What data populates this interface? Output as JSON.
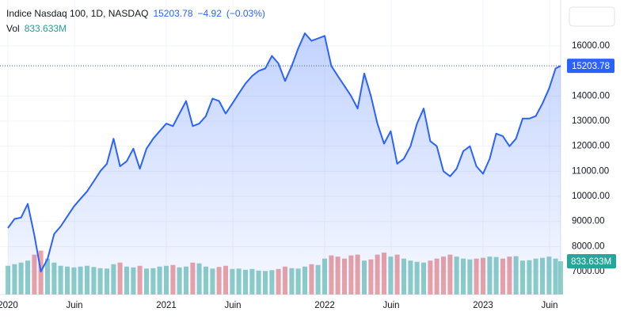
{
  "chart_data": {
    "type": "area",
    "title": "Indice Nasdaq 100, 1D, NASDAQ",
    "last_price": 15203.78,
    "change": {
      "value": -4.92,
      "label": "−4.92"
    },
    "change_pct": {
      "value": -0.03,
      "label": "(−0.03%)"
    },
    "color": "#2962ff",
    "x": [
      2020.0,
      2020.042,
      2020.083,
      2020.125,
      2020.167,
      2020.208,
      2020.25,
      2020.292,
      2020.333,
      2020.375,
      2020.417,
      2020.458,
      2020.5,
      2020.542,
      2020.583,
      2020.625,
      2020.667,
      2020.708,
      2020.75,
      2020.792,
      2020.833,
      2020.875,
      2020.917,
      2020.958,
      2021.0,
      2021.042,
      2021.083,
      2021.125,
      2021.167,
      2021.208,
      2021.25,
      2021.292,
      2021.333,
      2021.375,
      2021.417,
      2021.458,
      2021.5,
      2021.542,
      2021.583,
      2021.625,
      2021.667,
      2021.708,
      2021.75,
      2021.792,
      2021.833,
      2021.875,
      2021.917,
      2021.958,
      2022.0,
      2022.042,
      2022.083,
      2022.125,
      2022.167,
      2022.208,
      2022.25,
      2022.292,
      2022.333,
      2022.375,
      2022.417,
      2022.458,
      2022.5,
      2022.542,
      2022.583,
      2022.625,
      2022.667,
      2022.708,
      2022.75,
      2022.792,
      2022.833,
      2022.875,
      2022.917,
      2022.958,
      2023.0,
      2023.042,
      2023.083,
      2023.125,
      2023.167,
      2023.208,
      2023.25,
      2023.292,
      2023.333,
      2023.375,
      2023.417,
      2023.458,
      2023.49
    ],
    "values": [
      8733,
      9100,
      9150,
      9700,
      8450,
      7000,
      7500,
      8500,
      8800,
      9200,
      9600,
      9900,
      10200,
      10600,
      11000,
      11300,
      12300,
      11200,
      11400,
      11900,
      11100,
      11900,
      12300,
      12600,
      12900,
      12800,
      13300,
      13800,
      12800,
      12900,
      13200,
      13900,
      13800,
      13300,
      13700,
      14100,
      14500,
      14800,
      15000,
      15100,
      15600,
      15300,
      14600,
      15200,
      15900,
      16500,
      16200,
      16300,
      16400,
      15200,
      14800,
      14400,
      14000,
      13500,
      14900,
      14000,
      12900,
      12100,
      12600,
      11300,
      11500,
      12000,
      12900,
      13500,
      12200,
      12000,
      11000,
      10800,
      11100,
      11800,
      12000,
      11200,
      10900,
      11500,
      12500,
      12400,
      12000,
      12300,
      13100,
      13100,
      13200,
      13700,
      14300,
      15100,
      15203.78
    ],
    "volume": {
      "name": "Vol",
      "up_color": "#8fcfc6",
      "down_color": "#efa3a3",
      "values": [
        720,
        760,
        800,
        850,
        1000,
        1100,
        900,
        800,
        720,
        700,
        680,
        700,
        720,
        690,
        660,
        650,
        760,
        800,
        700,
        680,
        720,
        650,
        660,
        700,
        720,
        740,
        680,
        700,
        800,
        780,
        700,
        650,
        690,
        720,
        640,
        650,
        620,
        640,
        600,
        590,
        610,
        640,
        700,
        660,
        650,
        700,
        760,
        740,
        900,
        980,
        950,
        900,
        980,
        1000,
        850,
        880,
        1000,
        1050,
        950,
        1000,
        900,
        850,
        820,
        800,
        850,
        900,
        950,
        1000,
        950,
        900,
        880,
        900,
        920,
        950,
        940,
        900,
        950,
        960,
        850,
        860,
        900,
        920,
        950,
        900,
        833.633
      ],
      "last": {
        "value": 833.633,
        "label": "833.633M"
      }
    },
    "xlim": [
      2019.95,
      2023.49
    ],
    "xticks": [
      {
        "value": 2020,
        "label": "2020"
      },
      {
        "value": 2020.42,
        "label": "Juin"
      },
      {
        "value": 2021,
        "label": "2021"
      },
      {
        "value": 2021.42,
        "label": "Juin"
      },
      {
        "value": 2022,
        "label": "2022"
      },
      {
        "value": 2022.42,
        "label": "Juin"
      },
      {
        "value": 2023,
        "label": "2023"
      },
      {
        "value": 2023.42,
        "label": "Juin"
      }
    ],
    "ylim": [
      6085,
      17830
    ],
    "yticks": [
      {
        "value": 7000,
        "label": "7000.00"
      },
      {
        "value": 8000,
        "label": "8000.00"
      },
      {
        "value": 9000,
        "label": "9000.00"
      },
      {
        "value": 10000,
        "label": "10000.00"
      },
      {
        "value": 11000,
        "label": "11000.00"
      },
      {
        "value": 12000,
        "label": "12000.00"
      },
      {
        "value": 13000,
        "label": "13000.00"
      },
      {
        "value": 14000,
        "label": "14000.00"
      },
      {
        "value": 16000,
        "label": "16000.00"
      }
    ],
    "y2lim": [
      0,
      7384
    ],
    "grid": true
  }
}
